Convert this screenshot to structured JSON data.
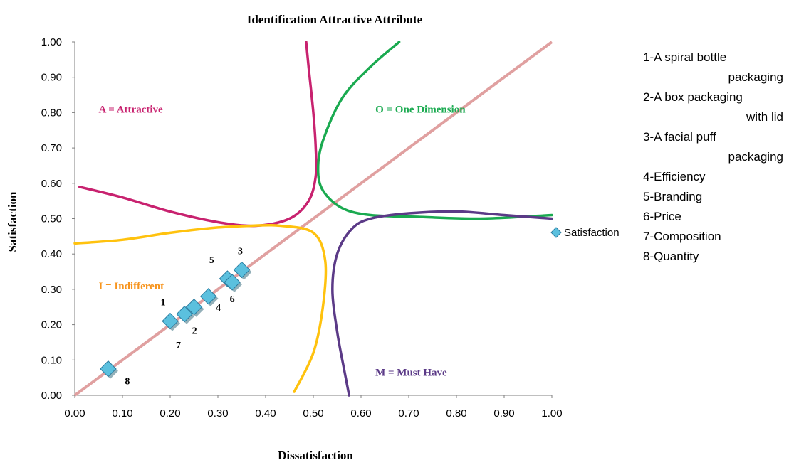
{
  "chart_data": {
    "type": "scatter",
    "title": "Identification Attractive Attribute",
    "xlabel": "Dissatisfaction",
    "ylabel": "Satisfaction",
    "xlim": [
      0,
      1
    ],
    "ylim": [
      0,
      1
    ],
    "xticks": [
      "0.00",
      "0.10",
      "0.20",
      "0.30",
      "0.40",
      "0.50",
      "0.60",
      "0.70",
      "0.80",
      "0.90",
      "1.00"
    ],
    "yticks": [
      "0.00",
      "0.10",
      "0.20",
      "0.30",
      "0.40",
      "0.50",
      "0.60",
      "0.70",
      "0.80",
      "0.90",
      "1.00"
    ],
    "grid": false,
    "legend": {
      "entries": [
        "Satisfaction"
      ],
      "position": "right"
    },
    "series": [
      {
        "name": "Satisfaction",
        "color": "#5BC0DE",
        "points": [
          {
            "label": "1",
            "x": 0.2,
            "y": 0.21
          },
          {
            "label": "2",
            "x": 0.23,
            "y": 0.23
          },
          {
            "label": "3",
            "x": 0.35,
            "y": 0.355
          },
          {
            "label": "4",
            "x": 0.28,
            "y": 0.28
          },
          {
            "label": "5",
            "x": 0.32,
            "y": 0.33
          },
          {
            "label": "6",
            "x": 0.33,
            "y": 0.32
          },
          {
            "label": "7",
            "x": 0.25,
            "y": 0.25
          },
          {
            "label": "8",
            "x": 0.07,
            "y": 0.075
          }
        ]
      }
    ],
    "reference_line": {
      "color": "#E0A0A0",
      "x": [
        0,
        1
      ],
      "y": [
        0,
        1
      ]
    },
    "curves": [
      {
        "region": "A",
        "color": "#C8226F",
        "x": [
          0.01,
          0.1,
          0.2,
          0.3,
          0.38,
          0.45,
          0.49,
          0.505,
          0.505,
          0.5,
          0.49,
          0.485
        ],
        "y": [
          0.59,
          0.56,
          0.52,
          0.49,
          0.48,
          0.5,
          0.55,
          0.62,
          0.7,
          0.8,
          0.93,
          1.0
        ]
      },
      {
        "region": "O",
        "color": "#1AAA50",
        "x": [
          0.68,
          0.62,
          0.56,
          0.52,
          0.51,
          0.52,
          0.56,
          0.62,
          0.72,
          0.85,
          1.0
        ],
        "y": [
          1.0,
          0.93,
          0.84,
          0.72,
          0.64,
          0.58,
          0.53,
          0.51,
          0.505,
          0.5,
          0.51
        ]
      },
      {
        "region": "I",
        "color": "#FFC20E",
        "x": [
          0.0,
          0.1,
          0.2,
          0.3,
          0.37,
          0.43,
          0.5,
          0.525,
          0.52,
          0.5,
          0.46
        ],
        "y": [
          0.43,
          0.44,
          0.46,
          0.475,
          0.48,
          0.48,
          0.46,
          0.38,
          0.25,
          0.12,
          0.01
        ]
      },
      {
        "region": "M",
        "color": "#5B3A87",
        "x": [
          1.0,
          0.9,
          0.8,
          0.7,
          0.62,
          0.58,
          0.55,
          0.54,
          0.55,
          0.565,
          0.575
        ],
        "y": [
          0.5,
          0.51,
          0.52,
          0.515,
          0.5,
          0.47,
          0.4,
          0.3,
          0.18,
          0.07,
          0.0
        ]
      }
    ],
    "regions": [
      {
        "text": "A = Attractive",
        "color": "#C8226F",
        "x": 0.05,
        "y": 0.8
      },
      {
        "text": "O = One Dimension",
        "color": "#1AAA50",
        "x": 0.63,
        "y": 0.8
      },
      {
        "text": "I = Indifferent",
        "color": "#F7941D",
        "x": 0.05,
        "y": 0.3
      },
      {
        "text": "M = Must Have",
        "color": "#5B3A87",
        "x": 0.63,
        "y": 0.055
      }
    ]
  },
  "notes": [
    {
      "line": "1-A spiral bottle",
      "indent": false
    },
    {
      "line": "packaging",
      "indent": true
    },
    {
      "line": "2-A box packaging",
      "indent": false
    },
    {
      "line": "with lid",
      "indent": true
    },
    {
      "line": "3-A facial puff",
      "indent": false
    },
    {
      "line": "packaging",
      "indent": true
    },
    {
      "line": "4-Efficiency",
      "indent": false
    },
    {
      "line": "5-Branding",
      "indent": false
    },
    {
      "line": "6-Price",
      "indent": false
    },
    {
      "line": "7-Composition",
      "indent": false
    },
    {
      "line": "8-Quantity",
      "indent": false
    }
  ]
}
